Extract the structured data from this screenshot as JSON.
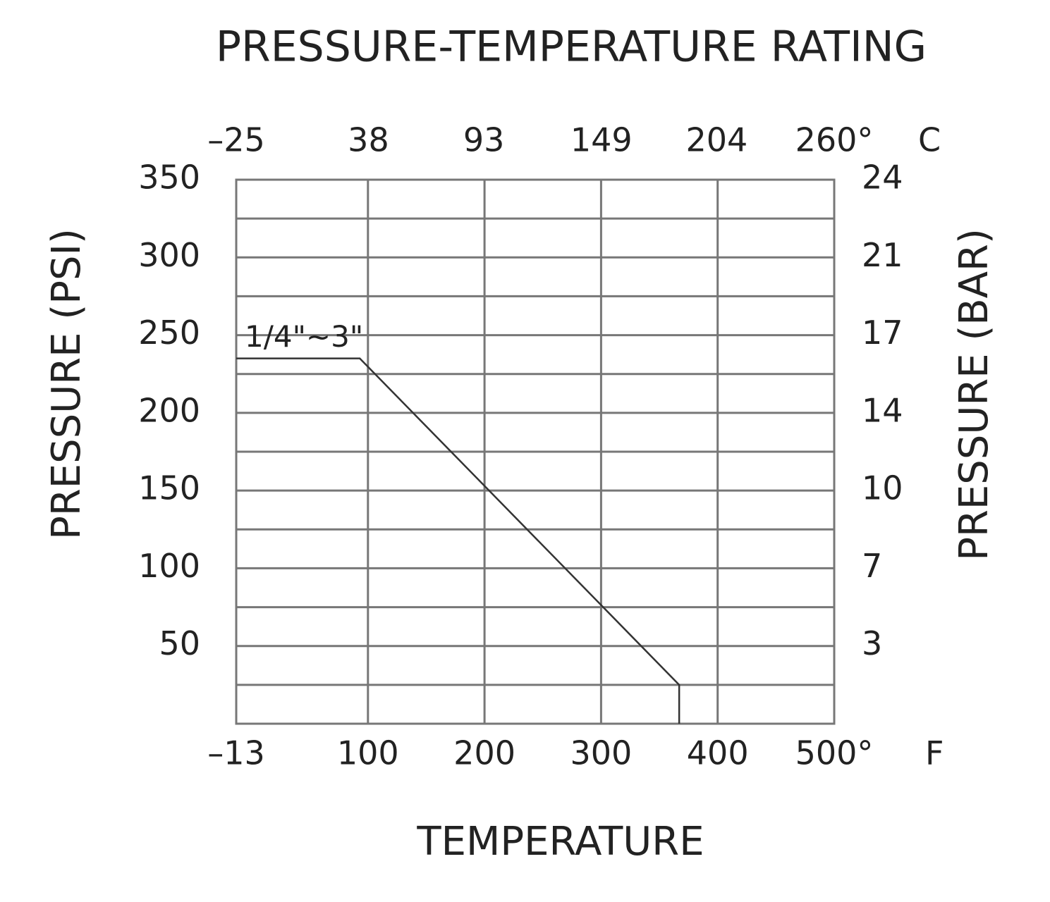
{
  "chart_data": {
    "type": "line",
    "title": "PRESSURE-TEMPERATURE RATING",
    "x_label": "TEMPERATURE",
    "y_label": "PRESSURE  (PSI)",
    "y2_label": "PRESSURE (BAR)",
    "x_unit": "F",
    "x2_unit": "C",
    "x": [
      -13,
      93,
      367,
      367
    ],
    "series": [
      {
        "name": "1/4\"~3\"",
        "color": "#333333",
        "values": [
          235,
          235,
          25,
          0
        ]
      }
    ],
    "xlim": [
      -13,
      500
    ],
    "xticks": [
      {
        "value": -13,
        "label": "–13"
      },
      100,
      200,
      300,
      400,
      {
        "value": 500,
        "label": "500°"
      }
    ],
    "x2lim": [
      -25,
      260
    ],
    "x2ticks": [
      {
        "value": -25,
        "label": "–25"
      },
      38,
      93,
      149,
      204,
      {
        "value": 260,
        "label": "260°"
      }
    ],
    "ylim": [
      0,
      350
    ],
    "yticks": [
      50,
      100,
      150,
      200,
      250,
      300,
      350
    ],
    "minor_yticks": [
      25,
      75,
      125,
      175,
      225,
      275,
      325
    ],
    "y2lim": [
      0,
      24.13
    ],
    "y2ticks": [
      {
        "value": 3.45,
        "label": "3"
      },
      {
        "value": 6.89,
        "label": "7"
      },
      {
        "value": 10.34,
        "label": "10"
      },
      {
        "value": 13.79,
        "label": "14"
      },
      {
        "value": 17.24,
        "label": "17"
      },
      {
        "value": 20.68,
        "label": "21"
      },
      {
        "value": 24.13,
        "label": "24"
      }
    ],
    "grid": true
  }
}
